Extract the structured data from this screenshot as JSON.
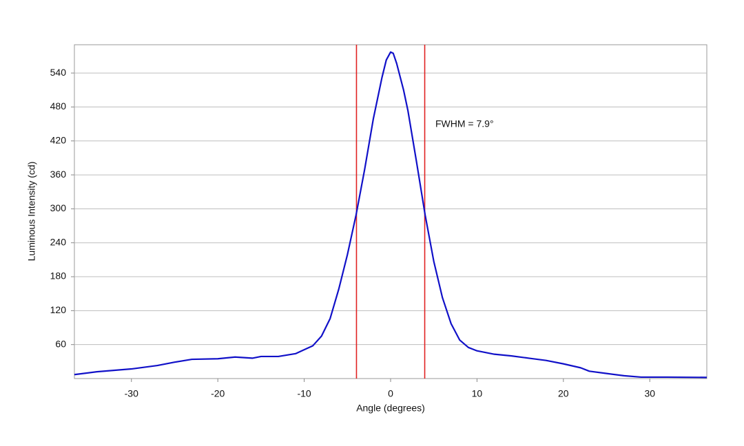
{
  "chart_data": {
    "type": "line",
    "xlabel": "Angle (degrees)",
    "ylabel": "Luminous Intensity (cd)",
    "annotation": "FWHM = 7.9°",
    "x": [
      -36.6,
      -34,
      -30,
      -27,
      -25,
      -23,
      -20,
      -18,
      -16,
      -15,
      -13,
      -11,
      -9,
      -8,
      -7,
      -6,
      -5,
      -4,
      -3,
      -2,
      -1,
      -0.5,
      0,
      0.3,
      0.7,
      1.5,
      2,
      3,
      4,
      5,
      6,
      7,
      8,
      9,
      10,
      12,
      14,
      16,
      18,
      20,
      22,
      23,
      25,
      27,
      29,
      32,
      36.6
    ],
    "values": [
      7,
      12,
      17,
      23,
      29,
      34,
      35,
      38,
      36,
      39,
      39,
      44,
      58,
      75,
      106,
      158,
      219,
      289,
      370,
      459,
      532,
      563,
      577,
      575,
      557,
      510,
      474,
      383,
      289,
      207,
      143,
      97,
      68,
      55,
      49,
      43,
      40,
      36,
      32,
      26,
      19,
      13,
      9,
      5,
      2.5,
      2.5,
      2
    ],
    "color": "#1010c8",
    "vlines": [
      -3.95,
      3.95
    ],
    "vline_color": "#e02020",
    "xlim": [
      -36.6,
      36.6
    ],
    "ylim": [
      0,
      590
    ],
    "xticks": [
      -30,
      -20,
      -10,
      0,
      10,
      20,
      30
    ],
    "yticks": [
      60,
      120,
      180,
      240,
      300,
      360,
      420,
      480,
      540
    ],
    "grid": true
  }
}
